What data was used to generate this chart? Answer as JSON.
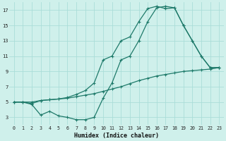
{
  "xlabel": "Humidex (Indice chaleur)",
  "bg_color": "#cff0eb",
  "grid_color": "#aaddd8",
  "line_color": "#1e7a6a",
  "xlim": [
    -0.5,
    23.5
  ],
  "ylim": [
    2,
    18
  ],
  "xticks": [
    0,
    1,
    2,
    3,
    4,
    5,
    6,
    7,
    8,
    9,
    10,
    11,
    12,
    13,
    14,
    15,
    16,
    17,
    18,
    19,
    20,
    21,
    22,
    23
  ],
  "yticks": [
    3,
    5,
    7,
    9,
    11,
    13,
    15,
    17
  ],
  "line_straight_x": [
    0,
    1,
    2,
    3,
    4,
    5,
    6,
    7,
    8,
    9,
    10,
    11,
    12,
    13,
    14,
    15,
    16,
    17,
    18,
    19,
    20,
    21,
    22,
    23
  ],
  "line_straight_y": [
    5.0,
    5.0,
    5.0,
    5.2,
    5.3,
    5.4,
    5.5,
    5.7,
    5.9,
    6.1,
    6.4,
    6.7,
    7.0,
    7.4,
    7.8,
    8.1,
    8.4,
    8.6,
    8.8,
    9.0,
    9.1,
    9.2,
    9.3,
    9.5
  ],
  "line_high_x": [
    0,
    1,
    2,
    3,
    4,
    5,
    6,
    7,
    8,
    9,
    10,
    11,
    12,
    13,
    14,
    15,
    16,
    17,
    18,
    19,
    20,
    21,
    22,
    23
  ],
  "line_high_y": [
    5.0,
    5.0,
    4.8,
    5.2,
    5.3,
    5.4,
    5.6,
    6.0,
    6.5,
    7.5,
    10.5,
    11.0,
    13.0,
    13.5,
    15.5,
    17.2,
    17.5,
    17.2,
    17.3,
    15.0,
    13.0,
    11.0,
    9.5,
    9.5
  ],
  "line_dip_x": [
    0,
    1,
    2,
    3,
    4,
    5,
    6,
    7,
    8,
    9,
    10,
    11,
    12,
    13,
    14,
    15,
    16,
    17,
    18,
    19,
    20,
    21,
    22,
    23
  ],
  "line_dip_y": [
    5.0,
    5.0,
    4.7,
    3.3,
    3.8,
    3.2,
    3.0,
    2.7,
    2.7,
    3.0,
    5.5,
    7.5,
    10.5,
    11.0,
    13.0,
    15.5,
    17.3,
    17.5,
    17.3,
    15.0,
    13.0,
    11.0,
    9.5,
    9.5
  ]
}
